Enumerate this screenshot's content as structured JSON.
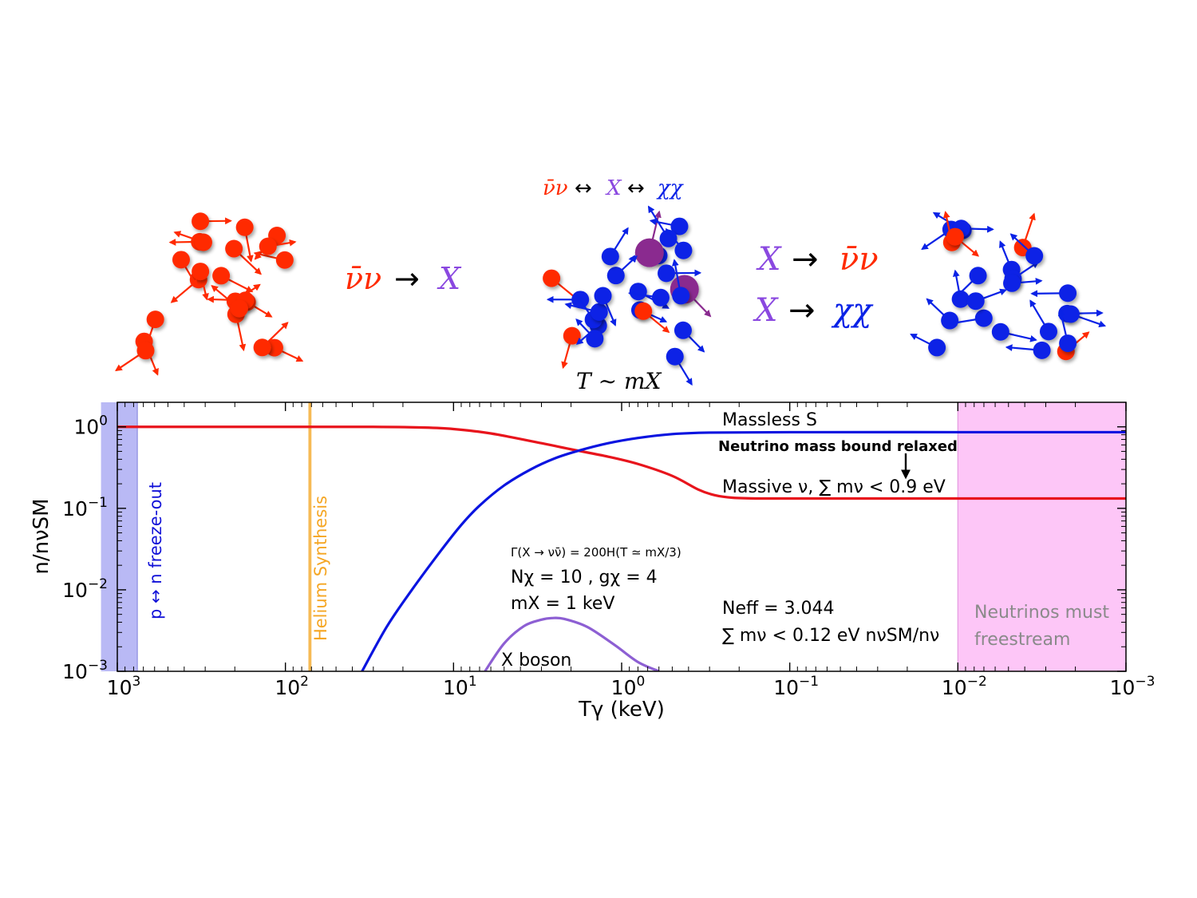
{
  "illustration": {
    "process_1": {
      "lhs": "ν̄ν",
      "arrow": "→",
      "rhs": "X"
    },
    "process_2": {
      "lhs_a": "ν̄ν",
      "arrow_a": "↔",
      "mid": "X",
      "arrow_b": "↔",
      "rhs": "χχ"
    },
    "process_3": {
      "lhs": "X",
      "arrow": "→",
      "rhs": "ν̄ν"
    },
    "process_4": {
      "lhs": "X",
      "arrow": "→",
      "rhs": "χχ"
    },
    "temperature_label": "T ∼ mX",
    "colors": {
      "neutrino": "#ff2a00",
      "dark": "#0a22e6",
      "boson": "#8a2b8f",
      "boson_text": "#8a48e0"
    }
  },
  "chart_data": {
    "type": "line",
    "title": "",
    "xlabel": "Tγ (keV)",
    "ylabel": "n/nνSM",
    "x_scale": "log-reversed",
    "xlim": [
      1000,
      0.001
    ],
    "ylim": [
      0.001,
      2.0
    ],
    "y_scale": "log",
    "x_ticks": [
      {
        "value": 1000,
        "base": "10",
        "exp": "3"
      },
      {
        "value": 100,
        "base": "10",
        "exp": "2"
      },
      {
        "value": 10,
        "base": "10",
        "exp": "1"
      },
      {
        "value": 1,
        "base": "10",
        "exp": "0"
      },
      {
        "value": 0.1,
        "base": "10",
        "exp": "−1"
      },
      {
        "value": 0.01,
        "base": "10",
        "exp": "−2"
      },
      {
        "value": 0.001,
        "base": "10",
        "exp": "−3"
      }
    ],
    "y_ticks": [
      {
        "value": 1,
        "base": "10",
        "exp": "0"
      },
      {
        "value": 0.1,
        "base": "10",
        "exp": "−1"
      },
      {
        "value": 0.01,
        "base": "10",
        "exp": "−2"
      },
      {
        "value": 0.001,
        "base": "10",
        "exp": "−3"
      }
    ],
    "series": [
      {
        "name": "Massive ν, ∑ mν < 0.9 eV",
        "color": "#e8141c",
        "x": [
          1000,
          100,
          30,
          15,
          10,
          6,
          3,
          2,
          1.2,
          0.8,
          0.5,
          0.35,
          0.28,
          0.22,
          0.15,
          0.05,
          0.01,
          0.001
        ],
        "y": [
          1.0,
          1.0,
          1.0,
          0.98,
          0.94,
          0.83,
          0.63,
          0.53,
          0.43,
          0.35,
          0.25,
          0.17,
          0.145,
          0.135,
          0.132,
          0.132,
          0.132,
          0.132
        ]
      },
      {
        "name": "Massless S",
        "color": "#0a14e0",
        "x": [
          35,
          25,
          18,
          12,
          9,
          7,
          5,
          3.5,
          2.5,
          1.8,
          1.2,
          0.8,
          0.5,
          0.3,
          0.1,
          0.01,
          0.001
        ],
        "y": [
          0.001,
          0.0035,
          0.0095,
          0.0295,
          0.0625,
          0.108,
          0.191,
          0.298,
          0.41,
          0.51,
          0.63,
          0.73,
          0.815,
          0.85,
          0.86,
          0.86,
          0.86
        ]
      },
      {
        "name": "X boson",
        "color": "#8d5fd3",
        "x": [
          6.5,
          5,
          3.8,
          3,
          2.6,
          2.2,
          1.6,
          1.1,
          0.8,
          0.6
        ],
        "y": [
          0.001,
          0.0022,
          0.0036,
          0.0043,
          0.0045,
          0.0044,
          0.0035,
          0.0021,
          0.0013,
          0.001
        ]
      }
    ],
    "bands": [
      {
        "label": "p ↔ n freeze-out",
        "color": "#b9b9f5",
        "from": 1250,
        "to": 760
      },
      {
        "label": "Helium Synthesis",
        "color": "#f5b342",
        "from": 73,
        "to": 70
      },
      {
        "label_line1": "Neutrinos must",
        "label_line2": "freestream",
        "color": "#fdc6f7",
        "from": 0.01,
        "to": 0.001
      }
    ],
    "annotations": {
      "massless_label": "Massless S",
      "massive_label": "Massive ν, ∑ mν < 0.9 eV",
      "bound_note": "Neutrino mass bound relaxed",
      "gamma_eq": "Γ(X → νν̄) = 200H(T ≃ mX/3)",
      "n_chi": "Nχ = 10 , gχ = 4",
      "m_x": "mX = 1 keV",
      "neff": "Neff = 3.044",
      "sum_m": "∑ mν < 0.12 eV nνSM/nν",
      "xboson_label": "X boson"
    }
  }
}
